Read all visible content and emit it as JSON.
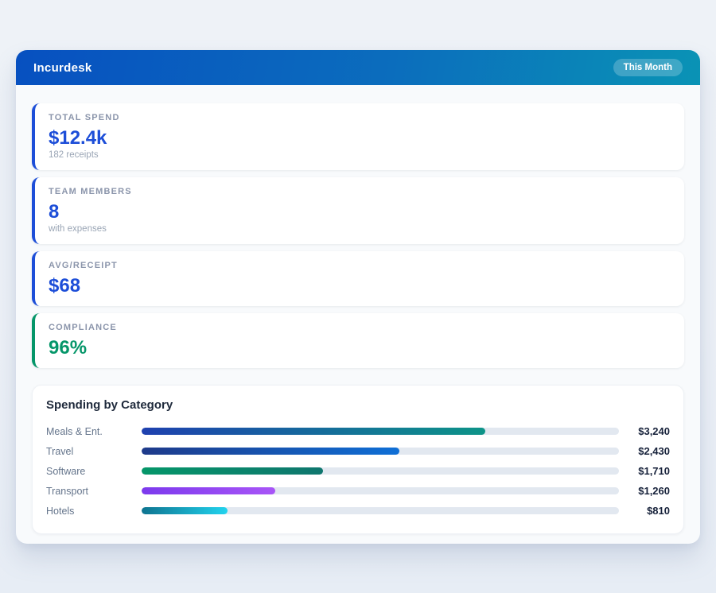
{
  "header": {
    "title": "Incurdesk",
    "period_badge": "This Month",
    "gradient_from": "#0750c0",
    "gradient_to": "#0a93b5"
  },
  "stats": [
    {
      "label": "TOTAL SPEND",
      "value": "$12.4k",
      "sub": "182 receipts",
      "accent": "#1d4ed8",
      "value_color": "#1d4ed8"
    },
    {
      "label": "TEAM MEMBERS",
      "value": "8",
      "sub": "with expenses",
      "accent": "#1d4ed8",
      "value_color": "#1d4ed8"
    },
    {
      "label": "AVG/RECEIPT",
      "value": "$68",
      "sub": "",
      "accent": "#1d4ed8",
      "value_color": "#1d4ed8"
    },
    {
      "label": "COMPLIANCE",
      "value": "96%",
      "sub": "",
      "accent": "#059669",
      "value_color": "#059669"
    }
  ],
  "chart_data": {
    "type": "bar",
    "title": "Spending by Category",
    "orientation": "horizontal",
    "axis_max": 4500,
    "track_color": "#e2e8f0",
    "rows": [
      {
        "label": "Meals & Ent.",
        "value": 3240,
        "value_label": "$3,240",
        "bar_from": "#1e40af",
        "bar_to": "#0d9488"
      },
      {
        "label": "Travel",
        "value": 2430,
        "value_label": "$2,430",
        "bar_from": "#1e3a8a",
        "bar_to": "#0f6fd6"
      },
      {
        "label": "Software",
        "value": 1710,
        "value_label": "$1,710",
        "bar_from": "#059669",
        "bar_to": "#0f766e"
      },
      {
        "label": "Transport",
        "value": 1260,
        "value_label": "$1,260",
        "bar_from": "#7c3aed",
        "bar_to": "#a855f7"
      },
      {
        "label": "Hotels",
        "value": 810,
        "value_label": "$810",
        "bar_from": "#0e7490",
        "bar_to": "#22d3ee"
      }
    ]
  }
}
